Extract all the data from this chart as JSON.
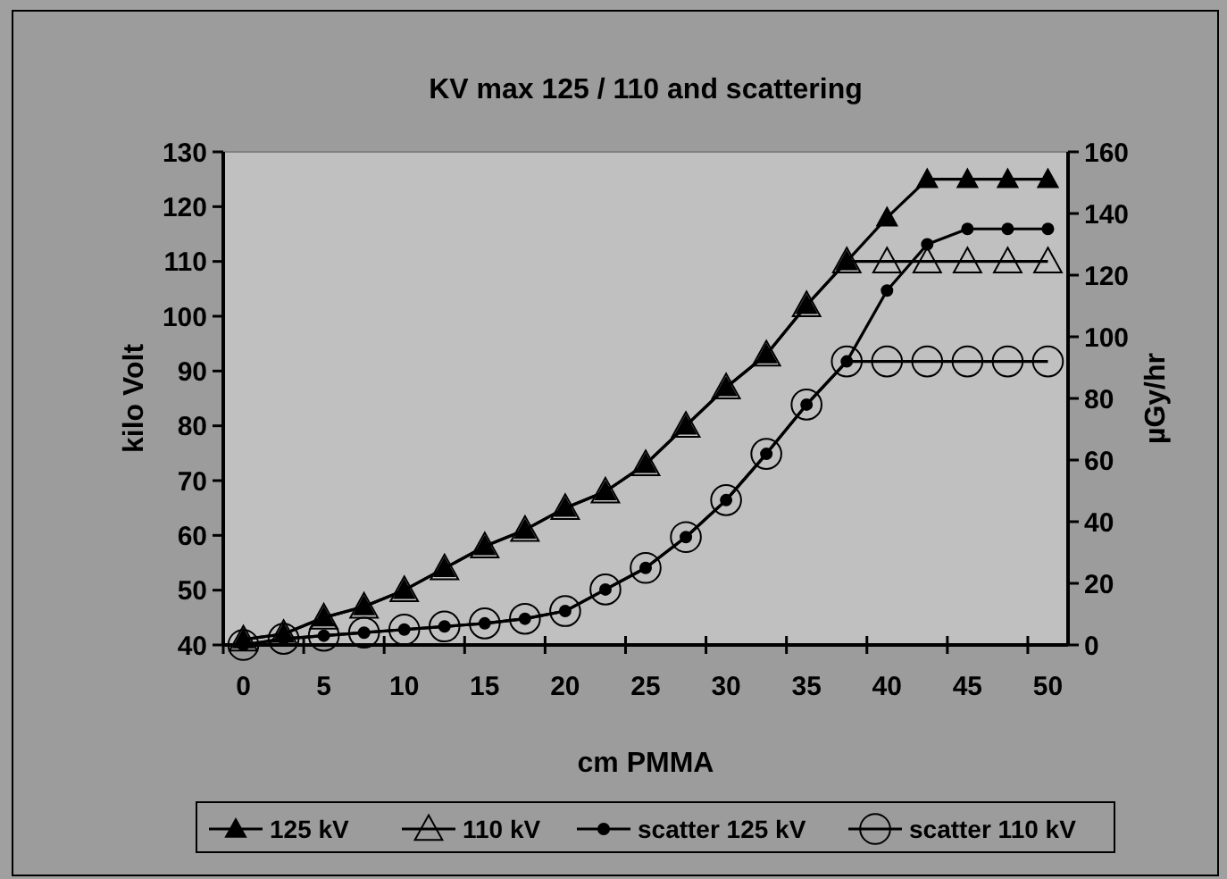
{
  "chart_data": {
    "type": "line",
    "title": "KV max 125 / 110 and scattering",
    "xlabel": "cm PMMA",
    "ylabel": "kilo Volt",
    "y2label": "µGy/hr",
    "x": [
      0,
      2.5,
      5,
      7.5,
      10,
      12.5,
      15,
      17.5,
      20,
      22.5,
      25,
      27.5,
      30,
      32.5,
      35,
      37.5,
      40,
      42.5,
      45,
      47.5,
      50
    ],
    "xlim": [
      -1.25,
      51.25
    ],
    "xticks": [
      0,
      5,
      10,
      15,
      20,
      25,
      30,
      35,
      40,
      45,
      50,
      {
        "value": -1.25,
        "label": null
      },
      {
        "value": 3.75,
        "label": null
      },
      {
        "value": 8.75,
        "label": null
      },
      {
        "value": 13.75,
        "label": null
      },
      {
        "value": 18.75,
        "label": null
      },
      {
        "value": 23.75,
        "label": null
      },
      {
        "value": 28.75,
        "label": null
      },
      {
        "value": 33.75,
        "label": null
      },
      {
        "value": 38.75,
        "label": null
      },
      {
        "value": 43.75,
        "label": null
      },
      {
        "value": 48.75,
        "label": null
      }
    ],
    "ylim": [
      40,
      130
    ],
    "yticks": [
      40,
      50,
      60,
      70,
      80,
      90,
      100,
      110,
      120,
      130
    ],
    "y2lim": [
      0,
      160
    ],
    "y2ticks": [
      0,
      20,
      40,
      60,
      80,
      100,
      120,
      140,
      160
    ],
    "series": [
      {
        "name": "125 kV",
        "color": "#000000",
        "marker": "triangle",
        "values": [
          41,
          42,
          45,
          47,
          50,
          54,
          58,
          61,
          65,
          68,
          73,
          80,
          87,
          93,
          102,
          110,
          118,
          125,
          125,
          125,
          125
        ]
      },
      {
        "name": "110 kV",
        "color": "#000000",
        "marker": "triangle",
        "values": [
          41,
          42,
          45,
          47,
          50,
          54,
          58,
          61,
          65,
          68,
          73,
          80,
          87,
          93,
          102,
          110,
          110,
          110,
          110,
          110,
          110
        ]
      },
      {
        "name": "scatter 125 kV",
        "color": "#000000",
        "marker": "circle",
        "axis": "y2",
        "values": [
          0,
          2,
          3,
          4,
          5,
          6,
          7,
          8.5,
          11,
          18,
          25,
          35,
          47,
          62,
          78,
          92,
          115,
          130,
          135,
          135,
          135
        ]
      },
      {
        "name": "scatter 110 kV",
        "color": "#000000",
        "marker": "circle",
        "axis": "y2",
        "values": [
          0,
          2,
          3,
          4,
          5,
          6,
          7,
          8.5,
          11,
          18,
          25,
          35,
          47,
          62,
          78,
          92,
          92,
          92,
          92,
          92,
          92
        ]
      }
    ],
    "legend": "bottom",
    "grid": false
  }
}
